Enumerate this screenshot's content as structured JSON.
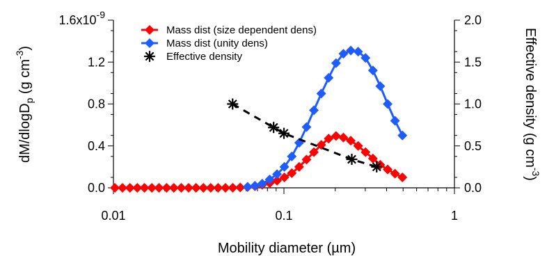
{
  "chart_data": {
    "type": "line",
    "x_axis": {
      "label": "Mobility diameter (µm)",
      "scale": "log",
      "range": [
        0.01,
        1
      ],
      "tick_labels": [
        "0.01",
        "0.1",
        "1"
      ]
    },
    "y_left": {
      "label_parts": [
        "dM/dlogD",
        "p",
        " (g cm",
        "-3",
        ")"
      ],
      "range": [
        0,
        1.6e-09
      ],
      "ticks": [
        0,
        4e-10,
        8e-10,
        1.2e-09,
        1.6e-09
      ],
      "tick_labels": [
        "0.0",
        "0.4",
        "0.8",
        "1.2",
        "1.6x10"
      ],
      "top_exponent": "-9"
    },
    "y_right": {
      "label_parts": [
        "Effective density (g cm",
        "-3",
        ")"
      ],
      "range": [
        0,
        2.0
      ],
      "ticks": [
        0,
        0.5,
        1.0,
        1.5,
        2.0
      ],
      "tick_labels": [
        "0.0",
        "0.5",
        "1.0",
        "1.5",
        "2.0"
      ]
    },
    "grid": false,
    "legend_position": "top-left",
    "series": [
      {
        "name": "Mass dist (size dependent dens)",
        "axis": "left",
        "color": "#ff0000",
        "marker": "diamond",
        "x": [
          0.0102,
          0.0113,
          0.0125,
          0.0138,
          0.0152,
          0.0168,
          0.0185,
          0.0205,
          0.0226,
          0.025,
          0.0276,
          0.0305,
          0.0337,
          0.0372,
          0.0411,
          0.0454,
          0.0501,
          0.0554,
          0.0612,
          0.0676,
          0.0746,
          0.0825,
          0.0911,
          0.1006,
          0.1112,
          0.1228,
          0.1357,
          0.1499,
          0.1656,
          0.1829,
          0.2021,
          0.2232,
          0.2466,
          0.2724,
          0.301,
          0.3325,
          0.3673,
          0.4058,
          0.4483,
          0.4953
        ],
        "y": [
          0,
          0,
          0,
          0,
          0,
          0,
          0,
          0,
          0,
          0,
          0,
          0,
          0,
          0,
          0,
          0,
          1e-12,
          3e-12,
          7e-12,
          1.5e-11,
          2.8e-11,
          4.5e-11,
          6.8e-11,
          1e-10,
          1.4e-10,
          2e-10,
          2.7e-10,
          3.4e-10,
          4.1e-10,
          4.7e-10,
          4.95e-10,
          4.8e-10,
          4.5e-10,
          4e-10,
          3.4e-10,
          2.8e-10,
          2.2e-10,
          1.75e-10,
          1.35e-10,
          1e-10
        ]
      },
      {
        "name": "Mass dist (unity dens)",
        "axis": "left",
        "color": "#1e5cff",
        "marker": "diamond",
        "x": [
          0.0612,
          0.0676,
          0.0746,
          0.0825,
          0.0911,
          0.1006,
          0.1112,
          0.1228,
          0.1357,
          0.1499,
          0.1656,
          0.1829,
          0.2021,
          0.2232,
          0.2466,
          0.2724,
          0.301,
          0.3325,
          0.3673,
          0.4058,
          0.4483,
          0.4953
        ],
        "y": [
          1e-11,
          2e-11,
          4e-11,
          8e-11,
          1.3e-10,
          2e-10,
          3e-10,
          4.3e-10,
          5.8e-10,
          7.4e-10,
          9e-10,
          1.05e-09,
          1.19e-09,
          1.28e-09,
          1.31e-09,
          1.3e-09,
          1.24e-09,
          1.12e-09,
          9.7e-10,
          8e-10,
          6.4e-10,
          5e-10
        ]
      },
      {
        "name": "Effective density",
        "axis": "right",
        "color": "#000000",
        "marker": "asterisk",
        "line_style": "dashed",
        "x": [
          0.05,
          0.087,
          0.1,
          0.25,
          0.35
        ],
        "y": [
          1.0,
          0.72,
          0.65,
          0.34,
          0.25
        ]
      }
    ]
  }
}
